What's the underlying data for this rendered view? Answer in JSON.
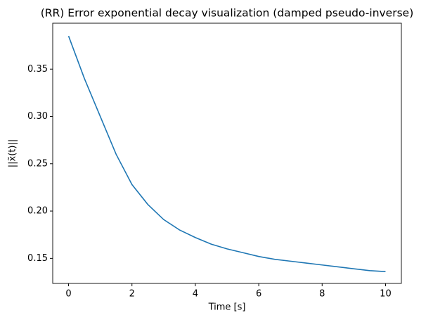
{
  "chart_data": {
    "type": "line",
    "title": "(RR) Error exponential decay visualization (damped pseudo-inverse)",
    "x_label": "Time [s]",
    "y_label": "||x̃(t)||",
    "x": [
      0,
      0.5,
      1,
      1.5,
      2,
      2.5,
      3,
      3.5,
      4,
      4.5,
      5,
      5.5,
      6,
      6.5,
      7,
      7.5,
      8,
      8.5,
      9,
      9.5,
      10
    ],
    "series": [
      {
        "color": "#1f77b4",
        "values": [
          0.385,
          0.34,
          0.3,
          0.26,
          0.228,
          0.207,
          0.191,
          0.18,
          0.172,
          0.165,
          0.16,
          0.156,
          0.152,
          0.149,
          0.147,
          0.145,
          0.143,
          0.141,
          0.139,
          0.137,
          0.136
        ]
      }
    ],
    "xlim": [
      -0.5,
      10.5
    ],
    "xticks": [
      0,
      2,
      4,
      6,
      8,
      10
    ],
    "ylim": [
      0.1235,
      0.3985
    ],
    "yticks": [
      0.15,
      {
        "value": 0.2,
        "label": "0.20"
      },
      0.25,
      {
        "value": 0.3,
        "label": "0.30"
      },
      0.35
    ],
    "grid": false
  }
}
